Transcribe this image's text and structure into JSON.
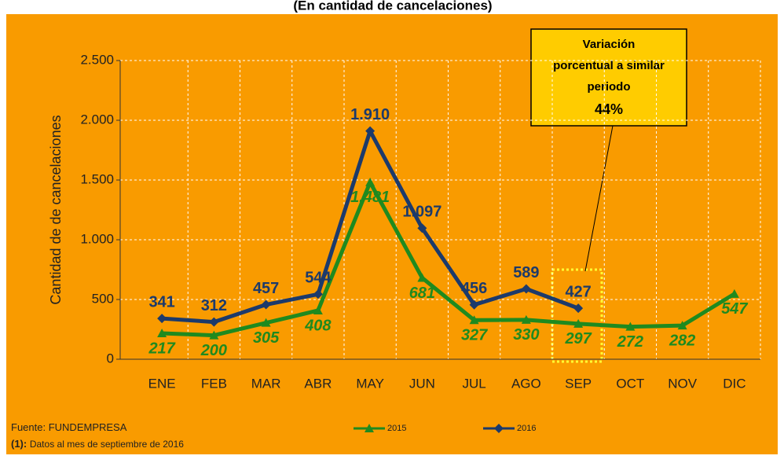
{
  "chart_data": {
    "type": "line",
    "subtitle": "(En cantidad de cancelaciones)",
    "y_label": "Cantidad de de cancelaciones",
    "categories": [
      "ENE",
      "FEB",
      "MAR",
      "ABR",
      "MAY",
      "JUN",
      "JUL",
      "AGO",
      "SEP",
      "OCT",
      "NOV",
      "DIC"
    ],
    "series": [
      {
        "name": "2015",
        "color": "#1f8a1f",
        "marker": "triangle",
        "values": [
          217,
          200,
          305,
          408,
          1481,
          681,
          327,
          330,
          297,
          272,
          282,
          547
        ],
        "value_labels": [
          "217",
          "200",
          "305",
          "408",
          "1.481",
          "681",
          "327",
          "330",
          "297",
          "272",
          "282",
          "547"
        ]
      },
      {
        "name": "2016",
        "color": "#1c3a6b",
        "marker": "diamond",
        "values": [
          341,
          312,
          457,
          544,
          1910,
          1097,
          456,
          589,
          427,
          null,
          null,
          null
        ],
        "value_labels": [
          "341",
          "312",
          "457",
          "544",
          "1.910",
          "1.097",
          "456",
          "589",
          "427",
          null,
          null,
          null
        ]
      }
    ],
    "ylim": [
      0,
      2500
    ],
    "yticks": [
      0,
      500,
      {
        "value": 1000,
        "label": "1.000"
      },
      {
        "value": 1500,
        "label": "1.500"
      },
      {
        "value": 2000,
        "label": "2.000"
      },
      {
        "value": 2500,
        "label": "2.500"
      }
    ],
    "grid": true,
    "legend": "bottom",
    "annotation": {
      "lines": [
        "Variación",
        "porcentual a similar",
        "periodo"
      ],
      "value": "44%"
    },
    "source": {
      "label": "Fuente:",
      "text": "FUNDEMPRESA"
    },
    "note": {
      "label": "(1):",
      "text": "Datos al mes de septiembre de 2016"
    }
  }
}
